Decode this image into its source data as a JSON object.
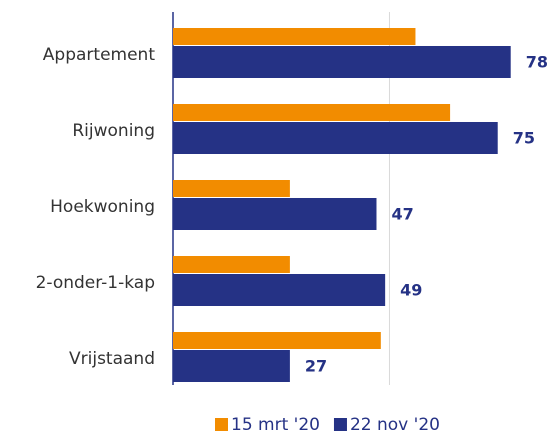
{
  "chart_data": {
    "type": "bar",
    "orientation": "horizontal",
    "categories": [
      "Appartement",
      "Rijwoning",
      "Hoekwoning",
      "2-onder-1-kap",
      "Vrijstaand"
    ],
    "series": [
      {
        "name": "15 mrt '20",
        "color": "#f28c00",
        "values": [
          56,
          64,
          27,
          27,
          48
        ]
      },
      {
        "name": "22 nov '20",
        "color": "#253285",
        "values": [
          78,
          75,
          47,
          49,
          27
        ],
        "show_labels": true
      }
    ],
    "xlim": [
      0,
      88
    ],
    "xticks": [
      0,
      50
    ],
    "grid": true,
    "legend": "bottom"
  }
}
